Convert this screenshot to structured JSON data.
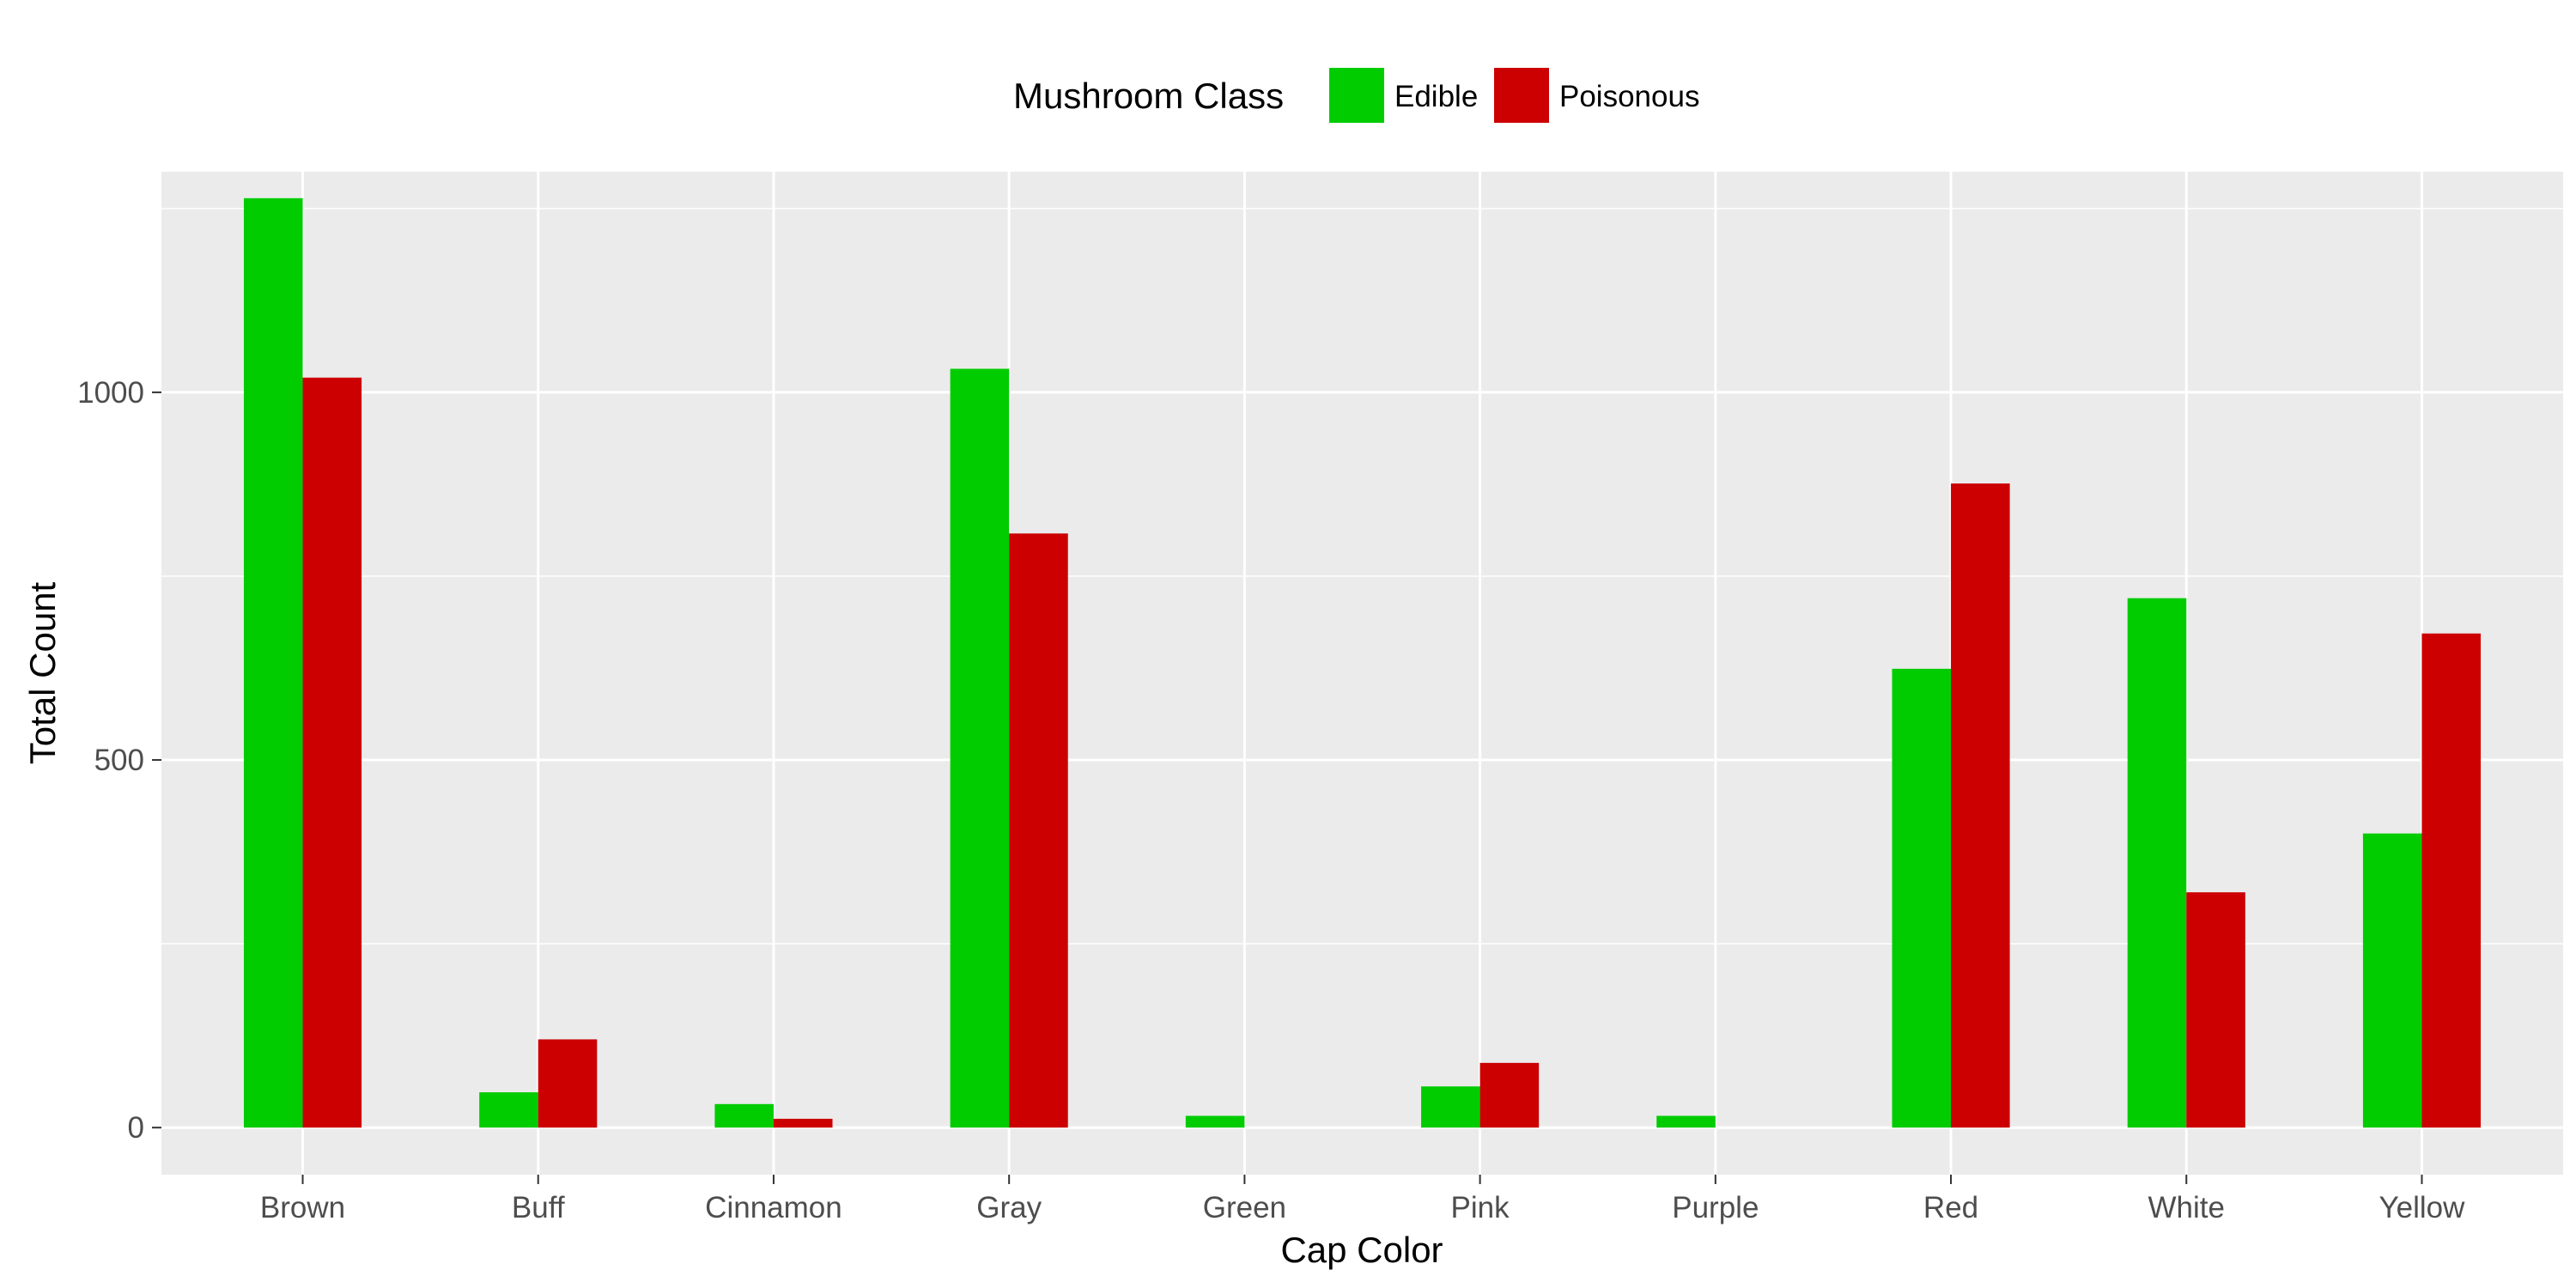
{
  "chart_data": {
    "type": "bar",
    "xlabel": "Cap Color",
    "ylabel": "Total Count",
    "legend_title": "Mushroom Class",
    "legend_position": "top",
    "grid": true,
    "ylim": [
      -64,
      1300
    ],
    "yticks": [
      0,
      500,
      1000
    ],
    "categories": [
      "Brown",
      "Buff",
      "Cinnamon",
      "Gray",
      "Green",
      "Pink",
      "Purple",
      "Red",
      "White",
      "Yellow"
    ],
    "series": [
      {
        "name": "Edible",
        "color": "#00CC00",
        "values": [
          1264,
          48,
          32,
          1032,
          16,
          56,
          16,
          624,
          720,
          400
        ]
      },
      {
        "name": "Poisonous",
        "color": "#CC0000",
        "values": [
          1020,
          120,
          12,
          808,
          0,
          88,
          0,
          876,
          320,
          672
        ]
      }
    ]
  }
}
